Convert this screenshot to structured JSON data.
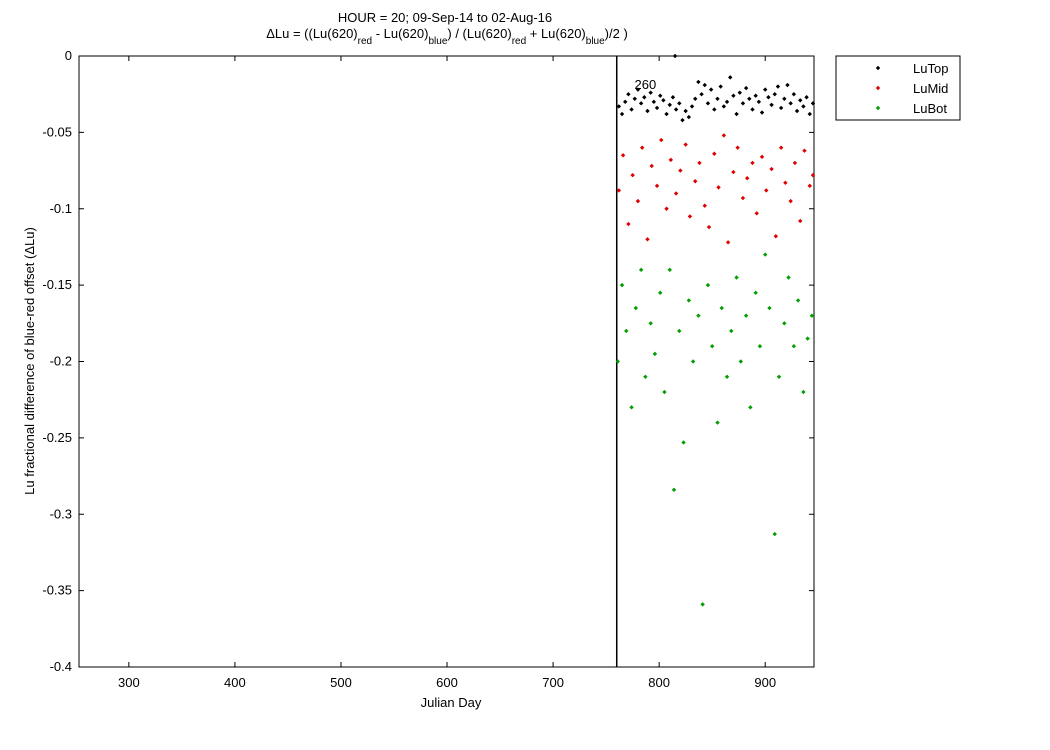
{
  "chart_data": {
    "type": "scatter",
    "title": "HOUR = 20; 09-Sep-14 to 02-Aug-16",
    "subtitle": [
      "ΔLu = ((Lu(620)",
      "red",
      " - Lu(620)",
      "blue",
      ") / (Lu(620)",
      "red",
      " + Lu(620)",
      "blue",
      ")/2  )"
    ],
    "x_label": "Julian Day",
    "y_label": "Lu fractional difference of blue-red offset (ΔLu)",
    "xlim": [
      253,
      946
    ],
    "ylim": [
      -0.4,
      0
    ],
    "xticks": [
      300,
      400,
      500,
      600,
      700,
      800,
      900
    ],
    "yticks": [
      0,
      -0.05,
      -0.1,
      -0.15,
      -0.2,
      -0.25,
      -0.3,
      -0.35,
      -0.4
    ],
    "vlines": [
      760
    ],
    "annotations": [
      {
        "text": "260",
        "x": 787,
        "y": -0.019
      }
    ],
    "legend": "outside-top-right",
    "series": [
      {
        "name": "LuTop",
        "color": "#000000",
        "x": [
          762,
          765,
          768,
          771,
          774,
          777,
          780,
          783,
          786,
          789,
          792,
          795,
          798,
          801,
          804,
          807,
          810,
          813,
          816,
          819,
          822,
          825,
          828,
          831,
          834,
          837,
          840,
          843,
          846,
          849,
          852,
          855,
          858,
          861,
          864,
          867,
          870,
          873,
          876,
          879,
          882,
          885,
          888,
          891,
          894,
          897,
          900,
          903,
          906,
          909,
          912,
          915,
          918,
          921,
          924,
          927,
          930,
          933,
          936,
          939,
          942,
          945,
          815
        ],
        "values": [
          -0.033,
          -0.038,
          -0.03,
          -0.025,
          -0.035,
          -0.028,
          -0.022,
          -0.031,
          -0.027,
          -0.036,
          -0.024,
          -0.03,
          -0.034,
          -0.026,
          -0.029,
          -0.038,
          -0.032,
          -0.027,
          -0.035,
          -0.031,
          -0.042,
          -0.036,
          -0.04,
          -0.033,
          -0.028,
          -0.017,
          -0.025,
          -0.019,
          -0.031,
          -0.022,
          -0.035,
          -0.028,
          -0.02,
          -0.033,
          -0.03,
          -0.014,
          -0.026,
          -0.038,
          -0.024,
          -0.031,
          -0.021,
          -0.028,
          -0.035,
          -0.026,
          -0.03,
          -0.037,
          -0.022,
          -0.027,
          -0.032,
          -0.025,
          -0.02,
          -0.034,
          -0.028,
          -0.019,
          -0.031,
          -0.025,
          -0.036,
          -0.029,
          -0.033,
          -0.027,
          -0.038,
          -0.031,
          0
        ]
      },
      {
        "name": "LuMid",
        "color": "#e00000",
        "x": [
          762,
          766,
          771,
          775,
          780,
          784,
          789,
          793,
          798,
          802,
          807,
          811,
          816,
          820,
          825,
          829,
          834,
          838,
          843,
          847,
          852,
          856,
          861,
          865,
          870,
          874,
          879,
          883,
          888,
          892,
          897,
          901,
          906,
          910,
          915,
          919,
          924,
          928,
          933,
          937,
          942,
          945
        ],
        "values": [
          -0.088,
          -0.065,
          -0.11,
          -0.078,
          -0.095,
          -0.06,
          -0.12,
          -0.072,
          -0.085,
          -0.055,
          -0.1,
          -0.068,
          -0.09,
          -0.075,
          -0.058,
          -0.105,
          -0.082,
          -0.07,
          -0.098,
          -0.112,
          -0.064,
          -0.086,
          -0.052,
          -0.122,
          -0.076,
          -0.06,
          -0.093,
          -0.08,
          -0.07,
          -0.103,
          -0.066,
          -0.088,
          -0.074,
          -0.118,
          -0.06,
          -0.083,
          -0.095,
          -0.07,
          -0.108,
          -0.062,
          -0.085,
          -0.078
        ]
      },
      {
        "name": "LuBot",
        "color": "#00a000",
        "x": [
          761,
          765,
          769,
          774,
          778,
          783,
          787,
          792,
          796,
          801,
          805,
          810,
          814,
          819,
          823,
          828,
          832,
          837,
          841,
          846,
          850,
          855,
          859,
          864,
          868,
          873,
          877,
          882,
          886,
          891,
          895,
          900,
          904,
          909,
          913,
          918,
          922,
          927,
          931,
          936,
          940,
          944
        ],
        "values": [
          -0.2,
          -0.15,
          -0.18,
          -0.23,
          -0.165,
          -0.14,
          -0.21,
          -0.175,
          -0.195,
          -0.155,
          -0.22,
          -0.14,
          -0.284,
          -0.18,
          -0.253,
          -0.16,
          -0.2,
          -0.17,
          -0.359,
          -0.15,
          -0.19,
          -0.24,
          -0.165,
          -0.21,
          -0.18,
          -0.145,
          -0.2,
          -0.17,
          -0.23,
          -0.155,
          -0.19,
          -0.13,
          -0.165,
          -0.313,
          -0.21,
          -0.175,
          -0.145,
          -0.19,
          -0.16,
          -0.22,
          -0.185,
          -0.17
        ]
      }
    ]
  }
}
